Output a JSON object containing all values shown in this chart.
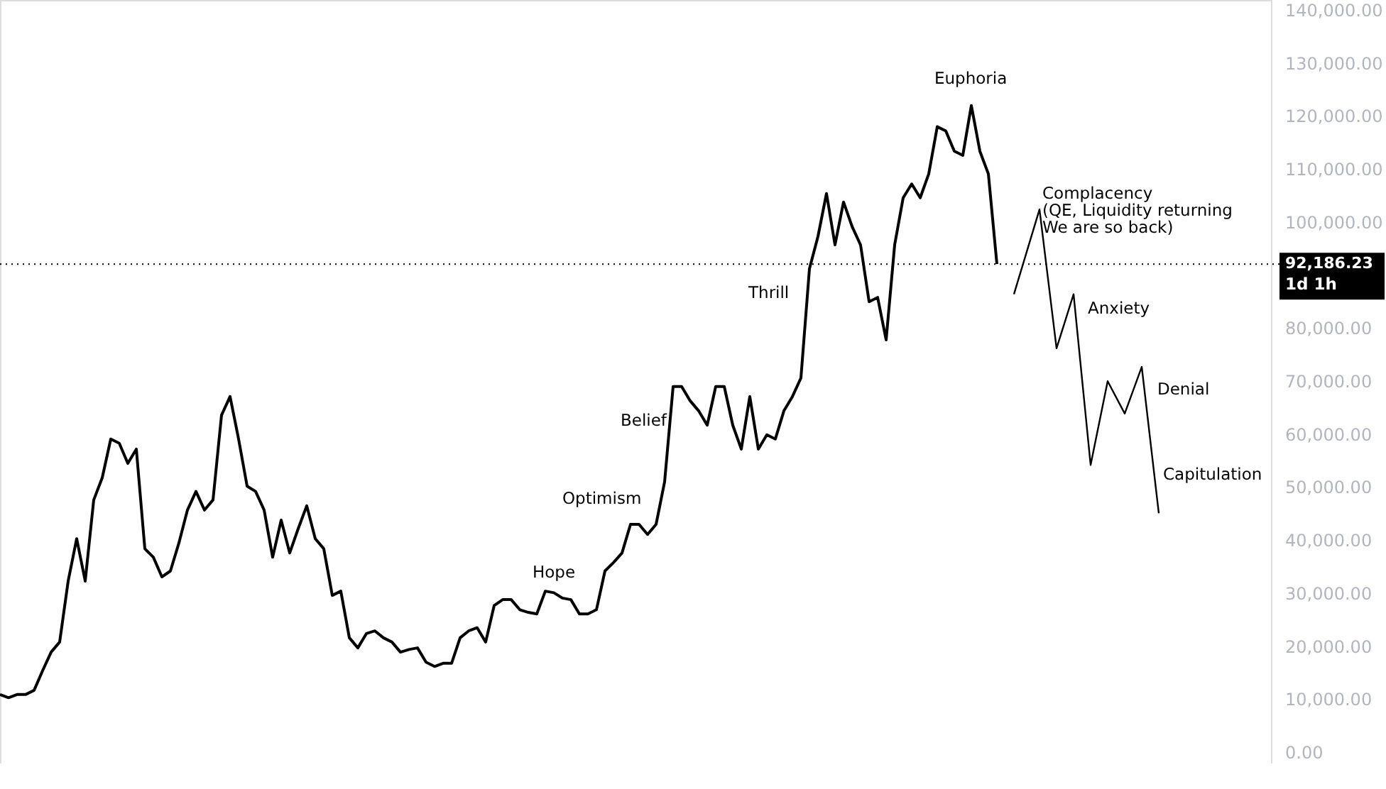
{
  "chart_data": {
    "type": "line",
    "categories": [
      null,
      null,
      null,
      null,
      null,
      null,
      null,
      null,
      null,
      null,
      null,
      null,
      null,
      null,
      null,
      null,
      null,
      null,
      null,
      null,
      null,
      null,
      null,
      null,
      null,
      null,
      null,
      null,
      null,
      null,
      null,
      null,
      null,
      null,
      null,
      null,
      null,
      null,
      null,
      null,
      null,
      null,
      null,
      null,
      null,
      null,
      null,
      null,
      null,
      null,
      null,
      null,
      null,
      null,
      null,
      null,
      null,
      null,
      null,
      null,
      null,
      null,
      null,
      null,
      null,
      null,
      null,
      null,
      null,
      null,
      null,
      null,
      null,
      null,
      null,
      null,
      null,
      null,
      null,
      null,
      null,
      null,
      null,
      null,
      null,
      null,
      null,
      null,
      null,
      null,
      null,
      null,
      null,
      null,
      null,
      null,
      null,
      null,
      null,
      null,
      null,
      null,
      null,
      null,
      null,
      null,
      null,
      null,
      null,
      null,
      null,
      null,
      null,
      null,
      null,
      null,
      null,
      null,
      null,
      null,
      null,
      null,
      null,
      null,
      null,
      null,
      null,
      null,
      null,
      null,
      null,
      null,
      null,
      null,
      null,
      null,
      null
    ],
    "series": [
      {
        "color": "#000000",
        "values": [
          11000,
          10400,
          11000,
          11000,
          11800,
          15500,
          19000,
          20900,
          32400,
          40400,
          32400,
          47700,
          51900,
          59200,
          58400,
          54600,
          57300,
          38500,
          36900,
          33200,
          34300,
          39600,
          45800,
          49300,
          45800,
          47700,
          63700,
          67200,
          59200,
          50300,
          49300,
          45800,
          36900,
          43900,
          37700,
          42300,
          46600,
          40400,
          38500,
          29700,
          30500,
          21700,
          19800,
          22500,
          23000,
          21700,
          20900,
          19000,
          19500,
          19800,
          17100,
          16300,
          16900,
          16900,
          21700,
          23000,
          23600,
          20900,
          27800,
          28900,
          28900,
          27000,
          26500,
          26200,
          30500,
          30200,
          29200,
          28900,
          26200,
          26200,
          27000,
          34300,
          35900,
          37700,
          43100,
          43100,
          41200,
          43100,
          51100,
          69100,
          69100,
          66400,
          64500,
          61800,
          69100,
          69100,
          61800,
          57300,
          67200,
          57300,
          60000,
          59200,
          64500,
          67200,
          70700,
          91300,
          97400,
          105500,
          95800,
          103900,
          99300,
          95800,
          85100,
          85900,
          77900,
          95800,
          104700,
          107300,
          104700,
          109200,
          118100,
          117300,
          113500,
          112700,
          122100,
          113500,
          109200,
          92200,
          null,
          null,
          null,
          null,
          null,
          null,
          null,
          null,
          null,
          null,
          null,
          null,
          null,
          null,
          null,
          null,
          null,
          null,
          null
        ]
      },
      {
        "color": "#000000",
        "values": [
          null,
          null,
          null,
          null,
          null,
          null,
          null,
          null,
          null,
          null,
          null,
          null,
          null,
          null,
          null,
          null,
          null,
          null,
          null,
          null,
          null,
          null,
          null,
          null,
          null,
          null,
          null,
          null,
          null,
          null,
          null,
          null,
          null,
          null,
          null,
          null,
          null,
          null,
          null,
          null,
          null,
          null,
          null,
          null,
          null,
          null,
          null,
          null,
          null,
          null,
          null,
          null,
          null,
          null,
          null,
          null,
          null,
          null,
          null,
          null,
          null,
          null,
          null,
          null,
          null,
          null,
          null,
          null,
          null,
          null,
          null,
          null,
          null,
          null,
          null,
          null,
          null,
          null,
          null,
          null,
          null,
          null,
          null,
          null,
          null,
          null,
          null,
          null,
          null,
          null,
          null,
          null,
          null,
          null,
          null,
          null,
          null,
          null,
          null,
          null,
          null,
          null,
          null,
          null,
          null,
          null,
          null,
          null,
          null,
          null,
          null,
          null,
          null,
          null,
          null,
          null,
          null,
          null,
          null,
          86500,
          null,
          null,
          102500,
          null,
          76300,
          null,
          86500,
          null,
          54300,
          null,
          70100,
          null,
          64000,
          null,
          72800,
          null,
          45200
        ]
      }
    ],
    "ylim": [
      -2000,
      142000
    ],
    "yticks": [
      {
        "value": 0,
        "label": "0.00"
      },
      {
        "value": 10000,
        "label": "10,000.00"
      },
      {
        "value": 20000,
        "label": "20,000.00"
      },
      {
        "value": 30000,
        "label": "30,000.00"
      },
      {
        "value": 40000,
        "label": "40,000.00"
      },
      {
        "value": 50000,
        "label": "50,000.00"
      },
      {
        "value": 60000,
        "label": "60,000.00"
      },
      {
        "value": 70000,
        "label": "70,000.00"
      },
      {
        "value": 80000,
        "label": "80,000.00"
      },
      {
        "value": 100000,
        "label": "100,000.00"
      },
      {
        "value": 110000,
        "label": "110,000.00"
      },
      {
        "value": 120000,
        "label": "120,000.00"
      },
      {
        "value": 130000,
        "label": "130,000.00"
      },
      {
        "value": 140000,
        "label": "140,000.00"
      }
    ],
    "tick_labels": "y",
    "grid": false,
    "ref_lines": [
      {
        "axis": "y",
        "value": 92186.23,
        "label": "92,186.23",
        "line_style": "dotted",
        "color": "#000000"
      }
    ],
    "annotations": [
      "1d 1h",
      "Hope",
      "Optimism",
      "Belief",
      "Thrill",
      "Euphoria",
      "Complacency\n(QE, Liquidity returning\nWe are so back)",
      "Anxiety",
      "Denial",
      "Capitulation"
    ]
  }
}
